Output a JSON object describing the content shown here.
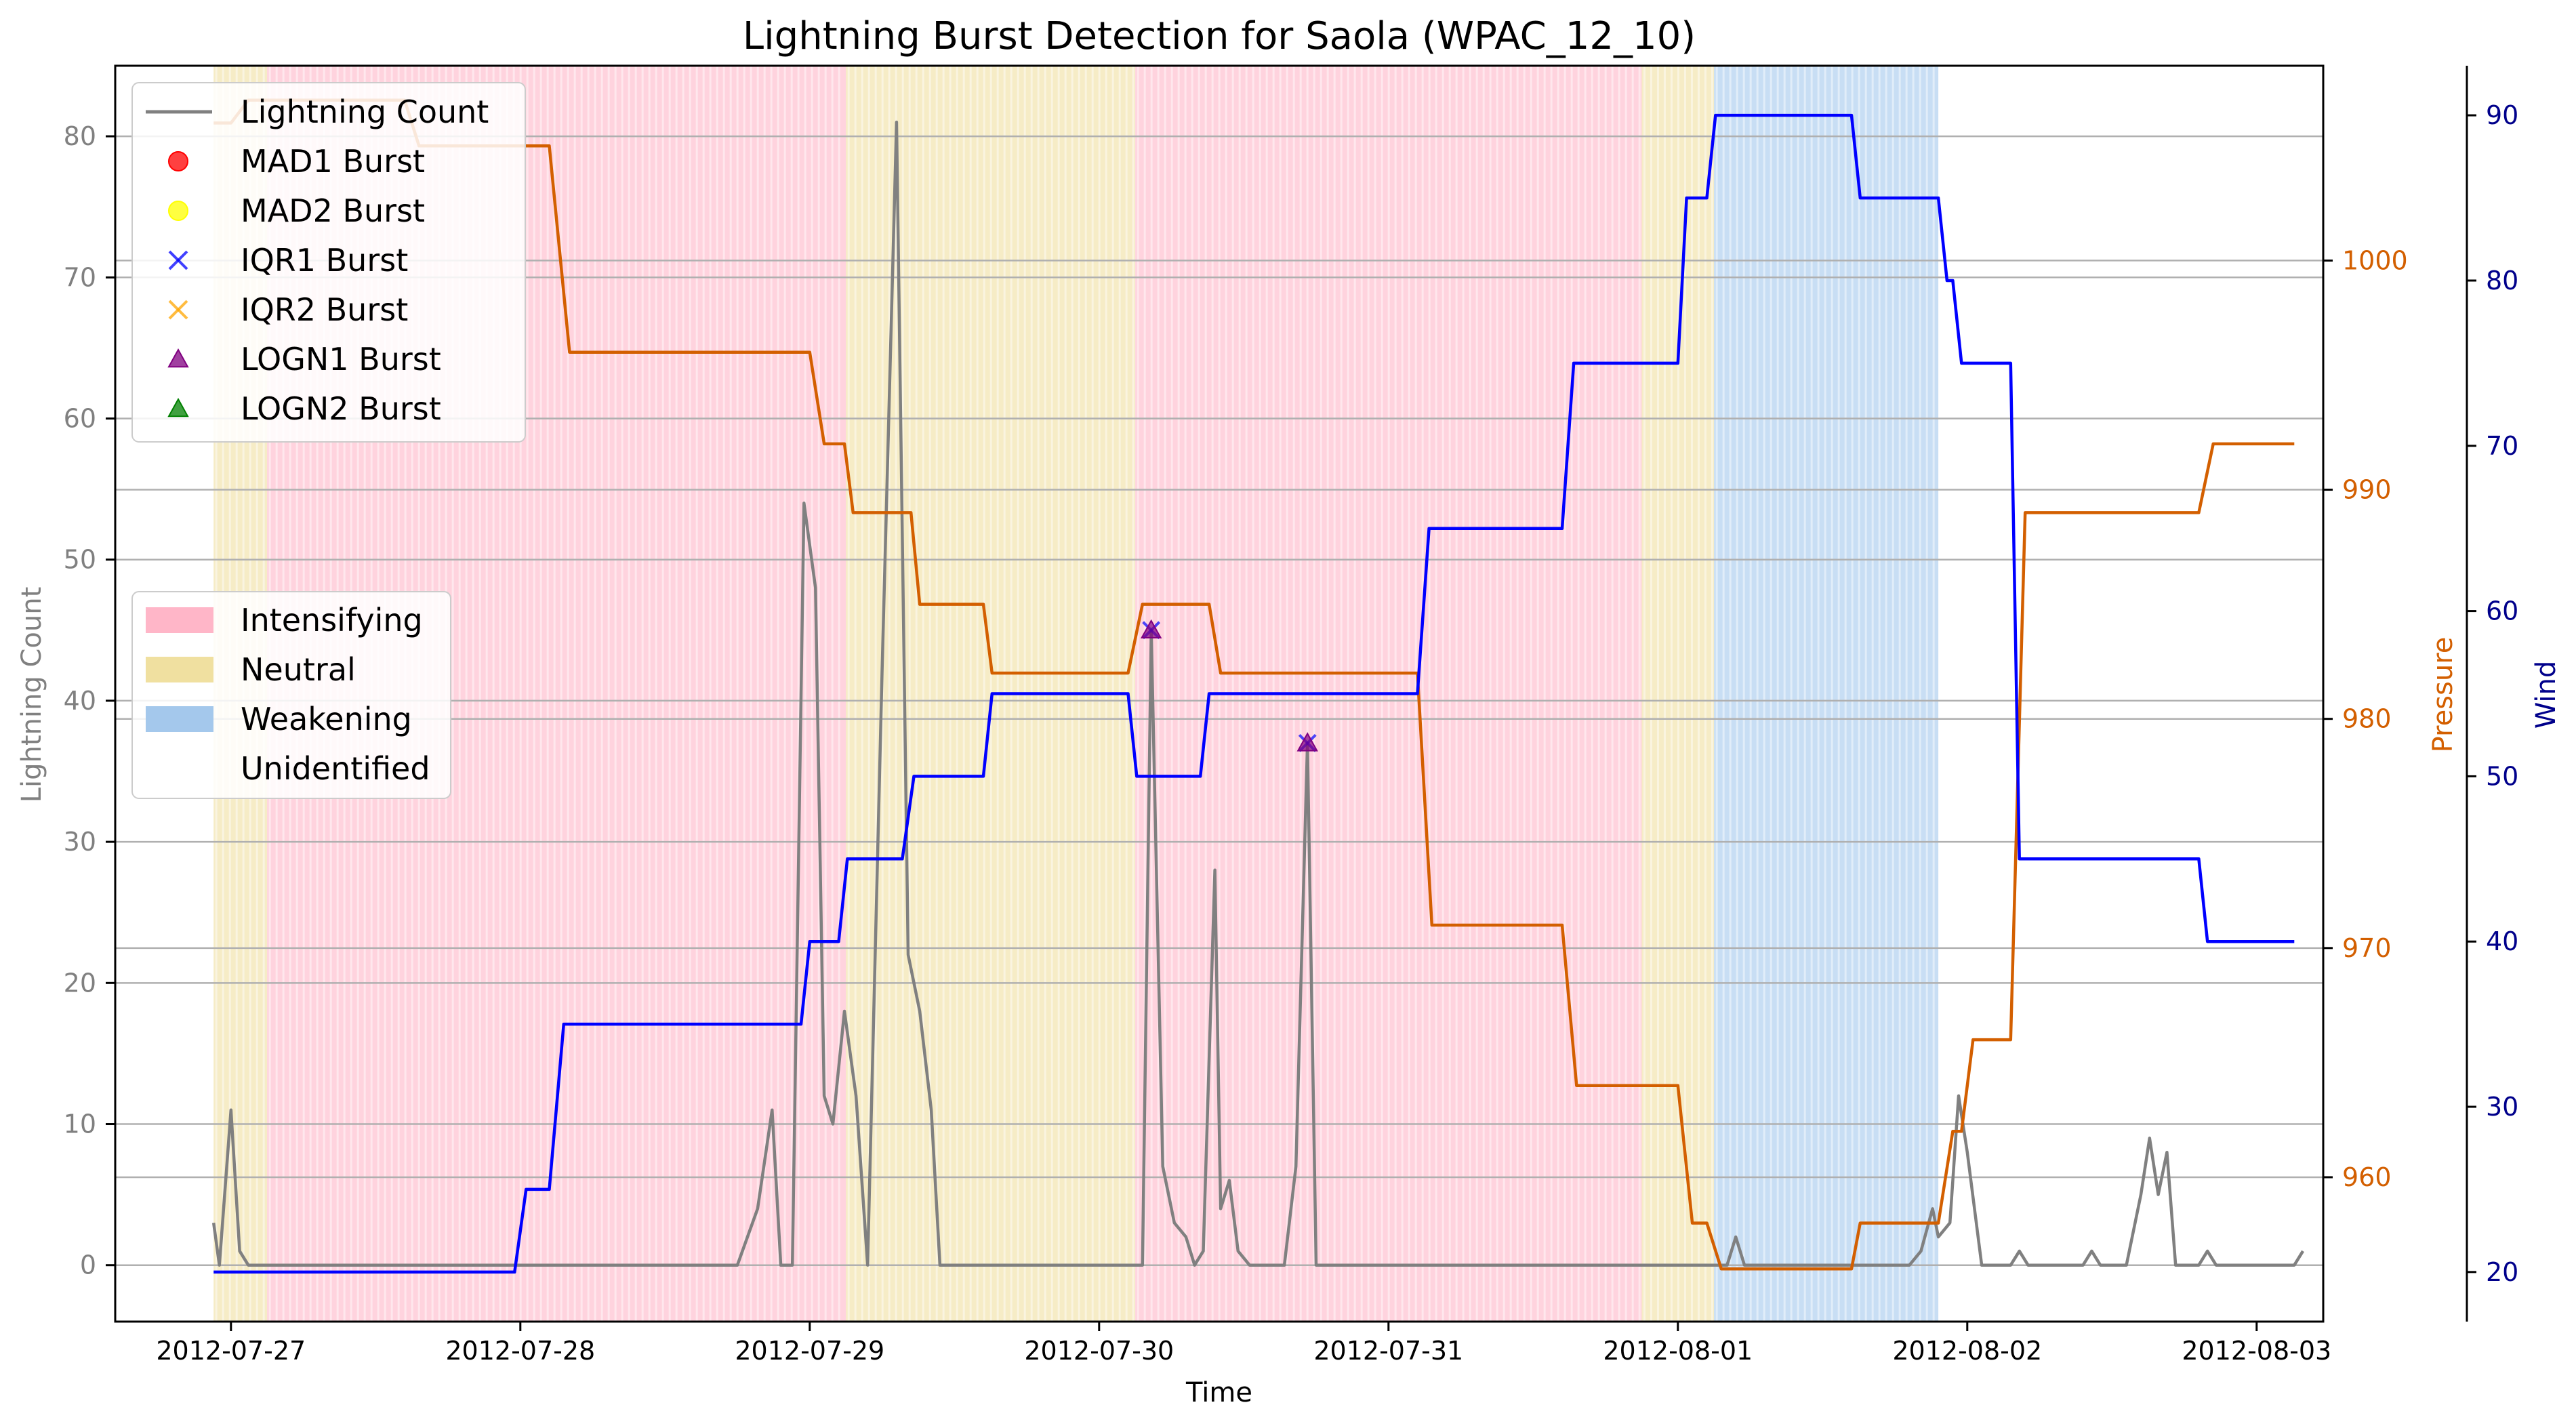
{
  "chart_data": {
    "type": "line",
    "title": "Lightning Burst Detection for Saola (WPAC_12_10)",
    "xlabel": "Time",
    "ylabel_left": "Lightning Count",
    "ylabel_pressure": "Pressure",
    "ylabel_wind": "Wind",
    "xlim_days": [
      -0.4,
      7.23
    ],
    "xticks": [
      "2012-07-27",
      "2012-07-28",
      "2012-07-29",
      "2012-07-30",
      "2012-07-31",
      "2012-08-01",
      "2012-08-02",
      "2012-08-03"
    ],
    "ylim_count": [
      -4,
      85
    ],
    "yticks_count": [
      0,
      10,
      20,
      30,
      40,
      50,
      60,
      70,
      80
    ],
    "ylim_pressure": [
      953.7,
      1008.5
    ],
    "yticks_pressure": [
      960,
      970,
      980,
      990,
      1000
    ],
    "ylim_wind": [
      17.0,
      93.0
    ],
    "yticks_wind": [
      20,
      30,
      40,
      50,
      60,
      70,
      80,
      90
    ],
    "grid": true,
    "colors": {
      "lightning": "#808080",
      "pressure": "#d35f00",
      "wind": "#0000ff",
      "wind_axis": "#00008b",
      "intensifying": "#ffb6c8",
      "neutral": "#f0e0a0",
      "weakening": "#a4c8ec"
    },
    "regimes": [
      {
        "label": "Neutral",
        "start": -0.06,
        "end": 0.125
      },
      {
        "label": "Intensifying",
        "start": 0.125,
        "end": 2.125
      },
      {
        "label": "Neutral",
        "start": 2.125,
        "end": 3.125
      },
      {
        "label": "Intensifying",
        "start": 3.125,
        "end": 4.875
      },
      {
        "label": "Neutral",
        "start": 4.875,
        "end": 5.125
      },
      {
        "label": "Weakening",
        "start": 5.125,
        "end": 5.9
      }
    ],
    "series": [
      {
        "name": "Lightning Count",
        "axis": "count",
        "points": [
          [
            -0.06,
            3
          ],
          [
            -0.04,
            0
          ],
          [
            0.0,
            11
          ],
          [
            0.03,
            1
          ],
          [
            0.06,
            0
          ],
          [
            1.0,
            0
          ],
          [
            1.75,
            0
          ],
          [
            1.82,
            4
          ],
          [
            1.87,
            11
          ],
          [
            1.9,
            0
          ],
          [
            1.94,
            0
          ],
          [
            1.98,
            54
          ],
          [
            2.02,
            48
          ],
          [
            2.05,
            12
          ],
          [
            2.08,
            10
          ],
          [
            2.12,
            18
          ],
          [
            2.16,
            12
          ],
          [
            2.2,
            0
          ],
          [
            2.25,
            42
          ],
          [
            2.3,
            81
          ],
          [
            2.34,
            22
          ],
          [
            2.38,
            18
          ],
          [
            2.42,
            11
          ],
          [
            2.45,
            0
          ],
          [
            2.75,
            0
          ],
          [
            3.15,
            0
          ],
          [
            3.18,
            45
          ],
          [
            3.22,
            7
          ],
          [
            3.26,
            3
          ],
          [
            3.3,
            2
          ],
          [
            3.33,
            0
          ],
          [
            3.36,
            1
          ],
          [
            3.4,
            28
          ],
          [
            3.42,
            4
          ],
          [
            3.45,
            6
          ],
          [
            3.48,
            1
          ],
          [
            3.52,
            0
          ],
          [
            3.64,
            0
          ],
          [
            3.68,
            7
          ],
          [
            3.72,
            37
          ],
          [
            3.75,
            0
          ],
          [
            4.5,
            0
          ],
          [
            5.125,
            0
          ],
          [
            5.17,
            0
          ],
          [
            5.2,
            2
          ],
          [
            5.23,
            0
          ],
          [
            5.8,
            0
          ],
          [
            5.84,
            1
          ],
          [
            5.88,
            4
          ],
          [
            5.9,
            2
          ],
          [
            5.94,
            3
          ],
          [
            5.97,
            12
          ],
          [
            6.0,
            8
          ],
          [
            6.05,
            0
          ],
          [
            6.15,
            0
          ],
          [
            6.18,
            1
          ],
          [
            6.21,
            0
          ],
          [
            6.4,
            0
          ],
          [
            6.43,
            1
          ],
          [
            6.46,
            0
          ],
          [
            6.55,
            0
          ],
          [
            6.6,
            5
          ],
          [
            6.63,
            9
          ],
          [
            6.66,
            5
          ],
          [
            6.69,
            8
          ],
          [
            6.72,
            0
          ],
          [
            6.8,
            0
          ],
          [
            6.83,
            1
          ],
          [
            6.86,
            0
          ],
          [
            7.13,
            0
          ],
          [
            7.16,
            1
          ]
        ]
      },
      {
        "name": "Pressure",
        "axis": "pressure",
        "points": [
          [
            -0.06,
            1006
          ],
          [
            0.0,
            1006
          ],
          [
            0.06,
            1007
          ],
          [
            0.6,
            1007
          ],
          [
            0.65,
            1005
          ],
          [
            1.1,
            1005
          ],
          [
            1.17,
            996
          ],
          [
            2.0,
            996
          ],
          [
            2.05,
            992
          ],
          [
            2.12,
            992
          ],
          [
            2.15,
            989
          ],
          [
            2.35,
            989
          ],
          [
            2.38,
            985
          ],
          [
            2.6,
            985
          ],
          [
            2.63,
            982
          ],
          [
            3.1,
            982
          ],
          [
            3.15,
            985
          ],
          [
            3.38,
            985
          ],
          [
            3.42,
            982
          ],
          [
            4.1,
            982
          ],
          [
            4.15,
            971
          ],
          [
            4.6,
            971
          ],
          [
            4.65,
            964
          ],
          [
            5.0,
            964
          ],
          [
            5.05,
            958
          ],
          [
            5.1,
            958
          ],
          [
            5.15,
            956
          ],
          [
            5.3,
            956
          ],
          [
            5.6,
            956
          ],
          [
            5.63,
            958
          ],
          [
            5.9,
            958
          ],
          [
            5.95,
            962
          ],
          [
            5.98,
            962
          ],
          [
            6.02,
            966
          ],
          [
            6.15,
            966
          ],
          [
            6.2,
            989
          ],
          [
            6.8,
            989
          ],
          [
            6.85,
            992
          ],
          [
            7.13,
            992
          ]
        ]
      },
      {
        "name": "Wind",
        "axis": "wind",
        "points": [
          [
            -0.06,
            20
          ],
          [
            0.0,
            20
          ],
          [
            0.98,
            20
          ],
          [
            1.02,
            25
          ],
          [
            1.1,
            25
          ],
          [
            1.15,
            35
          ],
          [
            1.97,
            35
          ],
          [
            2.0,
            40
          ],
          [
            2.1,
            40
          ],
          [
            2.13,
            45
          ],
          [
            2.32,
            45
          ],
          [
            2.36,
            50
          ],
          [
            2.6,
            50
          ],
          [
            2.63,
            55
          ],
          [
            3.1,
            55
          ],
          [
            3.13,
            50
          ],
          [
            3.35,
            50
          ],
          [
            3.38,
            55
          ],
          [
            4.1,
            55
          ],
          [
            4.14,
            65
          ],
          [
            4.6,
            65
          ],
          [
            4.64,
            75
          ],
          [
            5.0,
            75
          ],
          [
            5.03,
            85
          ],
          [
            5.1,
            85
          ],
          [
            5.13,
            90
          ],
          [
            5.6,
            90
          ],
          [
            5.63,
            85
          ],
          [
            5.9,
            85
          ],
          [
            5.93,
            80
          ],
          [
            5.95,
            80
          ],
          [
            5.98,
            75
          ],
          [
            6.15,
            75
          ],
          [
            6.18,
            45
          ],
          [
            6.8,
            45
          ],
          [
            6.83,
            40
          ],
          [
            7.13,
            40
          ]
        ]
      }
    ],
    "bursts": [
      {
        "name": "IQR1 Burst",
        "x": 3.18,
        "y": 45
      },
      {
        "name": "LOGN1 Burst",
        "x": 3.18,
        "y": 45
      },
      {
        "name": "IQR1 Burst",
        "x": 3.72,
        "y": 37
      },
      {
        "name": "LOGN1 Burst",
        "x": 3.72,
        "y": 37
      }
    ],
    "legend_top": [
      {
        "label": "Lightning Count",
        "kind": "line",
        "color": "#808080"
      },
      {
        "label": "MAD1 Burst",
        "kind": "circle",
        "color": "#ff0000"
      },
      {
        "label": "MAD2 Burst",
        "kind": "circle",
        "color": "#ffff00"
      },
      {
        "label": "IQR1 Burst",
        "kind": "x",
        "color": "#0000ff"
      },
      {
        "label": "IQR2 Burst",
        "kind": "x",
        "color": "#ffa500"
      },
      {
        "label": "LOGN1 Burst",
        "kind": "triangle",
        "color": "#800080"
      },
      {
        "label": "LOGN2 Burst",
        "kind": "triangle",
        "color": "#008000"
      }
    ],
    "legend_regime": [
      {
        "label": "Intensifying",
        "color": "#ffb6c8"
      },
      {
        "label": "Neutral",
        "color": "#f0e0a0"
      },
      {
        "label": "Weakening",
        "color": "#a4c8ec"
      },
      {
        "label": "Unidentified",
        "color": "#ffffff"
      }
    ]
  }
}
